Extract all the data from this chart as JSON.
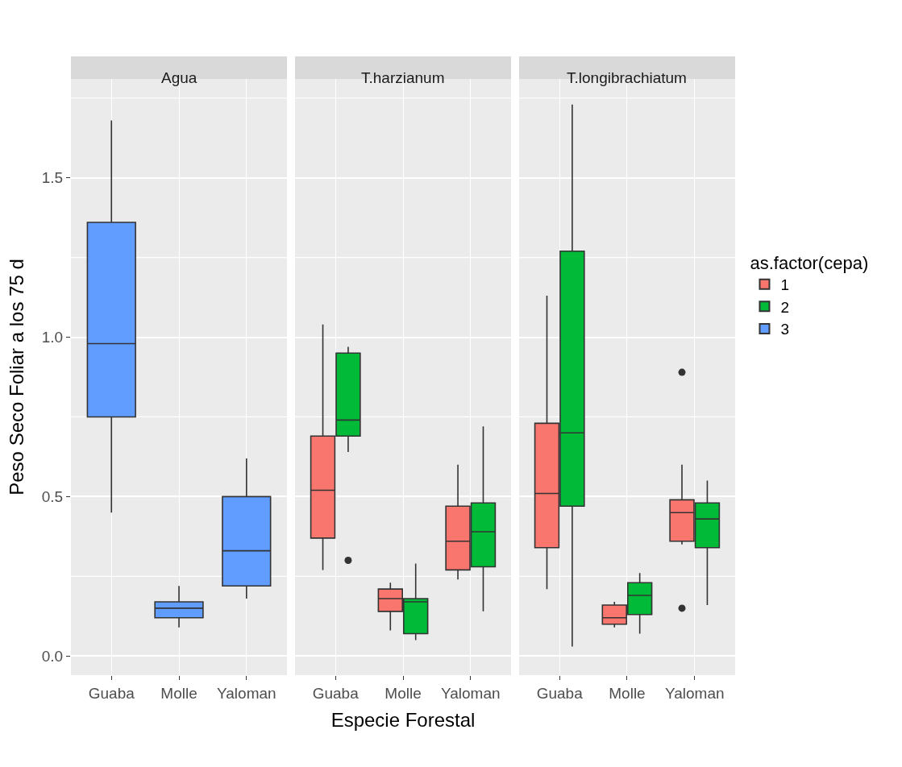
{
  "chart_data": [
    {
      "type": "box",
      "title": "Agua",
      "legend": "right",
      "ylabel": "Peso Seco Foliar a los 75 d",
      "categories": [
        "Guaba",
        "Molle",
        "Yaloman"
      ],
      "ylim": [
        -0.06,
        1.81
      ],
      "yticks": [
        {
          "value": 0,
          "label": "0.0"
        },
        0.5,
        {
          "value": 1,
          "label": "1.0"
        },
        1.5
      ],
      "grid": true,
      "series": [
        {
          "name": "3",
          "color": "#619cff",
          "boxes": [
            {
              "low": 0.45,
              "q1": 0.75,
              "median": 0.98,
              "q3": 1.36,
              "high": 1.68
            },
            {
              "low": 0.09,
              "q1": 0.12,
              "median": 0.15,
              "q3": 0.17,
              "high": 0.22
            },
            {
              "low": 0.18,
              "q1": 0.22,
              "median": 0.33,
              "q3": 0.5,
              "high": 0.62
            }
          ]
        }
      ]
    },
    {
      "type": "box",
      "title": "T.harzianum",
      "legend": "right",
      "xlabel": "Especie Forestal",
      "categories": [
        "Guaba",
        "Molle",
        "Yaloman"
      ],
      "ylim": [
        -0.06,
        1.81
      ],
      "yticks": [
        0,
        0.5,
        1,
        1.5
      ],
      "grid": true,
      "tick_labels": "x",
      "series": [
        {
          "name": "1",
          "color": "#f8766d",
          "boxes": [
            {
              "low": 0.27,
              "q1": 0.37,
              "median": 0.52,
              "q3": 0.69,
              "high": 1.04
            },
            {
              "low": 0.08,
              "q1": 0.14,
              "median": 0.18,
              "q3": 0.21,
              "high": 0.23
            },
            {
              "low": 0.24,
              "q1": 0.27,
              "median": 0.36,
              "q3": 0.47,
              "high": 0.6
            }
          ]
        },
        {
          "name": "2",
          "color": "#00ba38",
          "boxes": [
            {
              "low": 0.64,
              "q1": 0.69,
              "median": 0.74,
              "q3": 0.95,
              "high": 0.97,
              "outliers": [
                0.3
              ]
            },
            {
              "low": 0.05,
              "q1": 0.07,
              "median": 0.17,
              "q3": 0.18,
              "high": 0.29
            },
            {
              "low": 0.14,
              "q1": 0.28,
              "median": 0.39,
              "q3": 0.48,
              "high": 0.72
            }
          ]
        }
      ]
    },
    {
      "type": "box",
      "title": "T.longibrachiatum",
      "legend_title": "as.factor(cepa)",
      "legend": "right",
      "categories": [
        "Guaba",
        "Molle",
        "Yaloman"
      ],
      "ylim": [
        -0.06,
        1.81
      ],
      "yticks": [
        0,
        0.5,
        1,
        1.5
      ],
      "grid": true,
      "tick_labels": "x",
      "series": [
        {
          "name": "1",
          "color": "#f8766d",
          "boxes": [
            {
              "low": 0.21,
              "q1": 0.34,
              "median": 0.51,
              "q3": 0.73,
              "high": 1.13
            },
            {
              "low": 0.09,
              "q1": 0.1,
              "median": 0.12,
              "q3": 0.16,
              "high": 0.17
            },
            {
              "low": 0.35,
              "q1": 0.36,
              "median": 0.45,
              "q3": 0.49,
              "high": 0.6,
              "outliers": [
                0.89,
                0.15
              ]
            }
          ]
        },
        {
          "name": "2",
          "color": "#00ba38",
          "boxes": [
            {
              "low": 0.03,
              "q1": 0.47,
              "median": 0.7,
              "q3": 1.27,
              "high": 1.73
            },
            {
              "low": 0.07,
              "q1": 0.13,
              "median": 0.19,
              "q3": 0.23,
              "high": 0.26
            },
            {
              "low": 0.16,
              "q1": 0.34,
              "median": 0.43,
              "q3": 0.48,
              "high": 0.55
            }
          ]
        }
      ]
    }
  ]
}
